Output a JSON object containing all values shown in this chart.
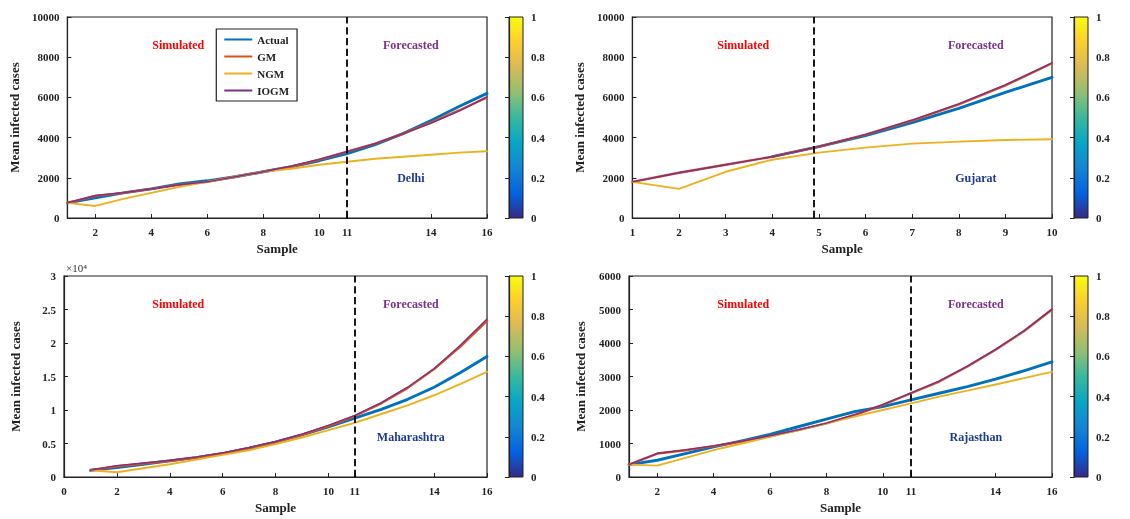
{
  "chart_data": [
    {
      "type": "line",
      "xlabel": "Sample",
      "ylabel": "Mean infected cases",
      "line_style": "solid",
      "legend": "top",
      "x": [
        1,
        2,
        3,
        4,
        5,
        6,
        7,
        8,
        9,
        10,
        11,
        12,
        13,
        14,
        15,
        16
      ],
      "xlim": [
        1,
        16
      ],
      "xticks": [
        2,
        4,
        6,
        8,
        10,
        11,
        14,
        16
      ],
      "ylim": [
        0,
        10000
      ],
      "yticks": [
        0,
        2000,
        4000,
        6000,
        8000,
        10000
      ],
      "clim": [
        0,
        1
      ],
      "cticks": [
        0,
        0.2,
        0.4,
        0.6,
        0.8,
        1
      ],
      "series": [
        {
          "name": "Actual",
          "color": "#0072bd",
          "values": [
            750,
            1000,
            1250,
            1450,
            1700,
            1850,
            2050,
            2300,
            2550,
            2850,
            3200,
            3650,
            4200,
            4850,
            5550,
            6200
          ]
        },
        {
          "name": "GM",
          "color": "#d95319",
          "values": [
            750,
            1100,
            1250,
            1450,
            1650,
            1800,
            2050,
            2300,
            2550,
            2900,
            3300,
            3700,
            4200,
            4750,
            5350,
            6000
          ]
        },
        {
          "name": "NGM",
          "color": "#edb120",
          "values": [
            750,
            600,
            950,
            1250,
            1550,
            1800,
            2050,
            2300,
            2450,
            2650,
            2800,
            2950,
            3050,
            3150,
            3250,
            3320
          ]
        },
        {
          "name": "IOGM",
          "color": "#7e2f8e",
          "values": [
            750,
            1120,
            1260,
            1450,
            1650,
            1800,
            2050,
            2300,
            2580,
            2920,
            3300,
            3700,
            4200,
            4720,
            5320,
            6020
          ]
        }
      ],
      "ref_lines": [
        {
          "axis": "x",
          "value": 11,
          "line_style": "dashed",
          "color": "#000000"
        }
      ],
      "annotations": [
        "Simulated",
        "Forecasted",
        "Delhi"
      ]
    },
    {
      "type": "line",
      "xlabel": "Sample",
      "ylabel": "Mean infected cases",
      "line_style": "solid",
      "x": [
        1,
        2,
        3,
        4,
        5,
        6,
        7,
        8,
        9,
        10
      ],
      "xlim": [
        1,
        10
      ],
      "xticks": [
        1,
        2,
        3,
        4,
        5,
        6,
        7,
        8,
        9,
        10
      ],
      "ylim": [
        0,
        10000
      ],
      "yticks": [
        0,
        2000,
        4000,
        6000,
        8000,
        10000
      ],
      "clim": [
        0,
        1
      ],
      "cticks": [
        0,
        0.2,
        0.4,
        0.6,
        0.8,
        1
      ],
      "series": [
        {
          "color": "#0072bd",
          "values": [
            null,
            null,
            null,
            3050,
            3550,
            4100,
            4750,
            5450,
            6250,
            7000
          ]
        },
        {
          "color": "#d95319",
          "values": [
            1800,
            2250,
            2650,
            3050,
            3550,
            4150,
            4850,
            5650,
            6600,
            7700
          ]
        },
        {
          "color": "#edb120",
          "values": [
            1800,
            1450,
            2300,
            2900,
            3250,
            3500,
            3700,
            3800,
            3880,
            3920
          ]
        },
        {
          "color": "#7e2f8e",
          "values": [
            1800,
            2250,
            2650,
            3050,
            3550,
            4150,
            4870,
            5680,
            6620,
            7720
          ]
        }
      ],
      "ref_lines": [
        {
          "axis": "x",
          "value": 4.9,
          "line_style": "dashed",
          "color": "#000000"
        }
      ],
      "annotations": [
        "Simulated",
        "Forecasted",
        "Gujarat"
      ]
    },
    {
      "type": "line",
      "xlabel": "Sample",
      "ylabel": "Mean infected cases",
      "line_style": "solid",
      "x": [
        1,
        2,
        3,
        4,
        5,
        6,
        7,
        8,
        9,
        10,
        11,
        12,
        13,
        14,
        15,
        16
      ],
      "xlim": [
        0,
        16
      ],
      "xticks": [
        0,
        2,
        4,
        6,
        8,
        10,
        11,
        14,
        16
      ],
      "ylim": [
        0,
        3
      ],
      "yticks": [
        0,
        0.5,
        1,
        1.5,
        2,
        2.5,
        3
      ],
      "clim": [
        0,
        1
      ],
      "cticks": [
        0,
        0.2,
        0.4,
        0.6,
        0.8,
        1
      ],
      "series": [
        {
          "color": "#0072bd",
          "values": [
            0.1,
            0.14,
            0.19,
            0.24,
            0.29,
            0.35,
            0.43,
            0.52,
            0.63,
            0.75,
            0.88,
            1.01,
            1.16,
            1.34,
            1.56,
            1.8
          ]
        },
        {
          "color": "#d95319",
          "values": [
            0.1,
            0.16,
            0.2,
            0.24,
            0.29,
            0.35,
            0.43,
            0.52,
            0.63,
            0.76,
            0.91,
            1.1,
            1.33,
            1.61,
            1.95,
            2.33
          ]
        },
        {
          "color": "#edb120",
          "values": [
            0.1,
            0.07,
            0.13,
            0.19,
            0.26,
            0.33,
            0.4,
            0.49,
            0.59,
            0.7,
            0.81,
            0.94,
            1.07,
            1.22,
            1.39,
            1.57
          ]
        },
        {
          "color": "#7e2f8e",
          "values": [
            0.1,
            0.17,
            0.21,
            0.25,
            0.3,
            0.36,
            0.44,
            0.53,
            0.64,
            0.77,
            0.92,
            1.11,
            1.34,
            1.62,
            1.97,
            2.36
          ]
        }
      ],
      "ref_lines": [
        {
          "axis": "x",
          "value": 11,
          "line_style": "dashed",
          "color": "#000000"
        }
      ],
      "annotations": [
        "Simulated",
        "Forecasted",
        "Maharashtra",
        "×10⁴"
      ]
    },
    {
      "type": "line",
      "xlabel": "Sample",
      "ylabel": "Mean infected cases",
      "line_style": "solid",
      "x": [
        1,
        2,
        3,
        4,
        5,
        6,
        7,
        8,
        9,
        10,
        11,
        12,
        13,
        14,
        15,
        16
      ],
      "xlim": [
        1,
        16
      ],
      "xticks": [
        2,
        4,
        6,
        8,
        10,
        11,
        14,
        16
      ],
      "ylim": [
        0,
        6000
      ],
      "yticks": [
        0,
        1000,
        2000,
        3000,
        4000,
        5000,
        6000
      ],
      "clim": [
        0,
        1
      ],
      "cticks": [
        0,
        0.2,
        0.4,
        0.6,
        0.8,
        1
      ],
      "series": [
        {
          "color": "#0072bd",
          "values": [
            370,
            500,
            700,
            900,
            1080,
            1270,
            1500,
            1730,
            1950,
            2100,
            2300,
            2500,
            2700,
            2920,
            3170,
            3440
          ]
        },
        {
          "color": "#d95319",
          "values": [
            370,
            700,
            800,
            920,
            1060,
            1220,
            1400,
            1600,
            1850,
            2150,
            2500,
            2850,
            3300,
            3800,
            4350,
            5000
          ]
        },
        {
          "color": "#edb120",
          "values": [
            370,
            340,
            570,
            800,
            1000,
            1200,
            1400,
            1600,
            1800,
            2000,
            2200,
            2400,
            2580,
            2760,
            2950,
            3140
          ]
        },
        {
          "color": "#7e2f8e",
          "values": [
            370,
            700,
            810,
            930,
            1070,
            1230,
            1410,
            1610,
            1860,
            2160,
            2510,
            2860,
            3310,
            3810,
            4360,
            5010
          ]
        }
      ],
      "ref_lines": [
        {
          "axis": "x",
          "value": 11,
          "line_style": "dashed",
          "color": "#000000"
        }
      ],
      "annotations": [
        "Simulated",
        "Forecasted",
        "Rajasthan"
      ]
    }
  ]
}
